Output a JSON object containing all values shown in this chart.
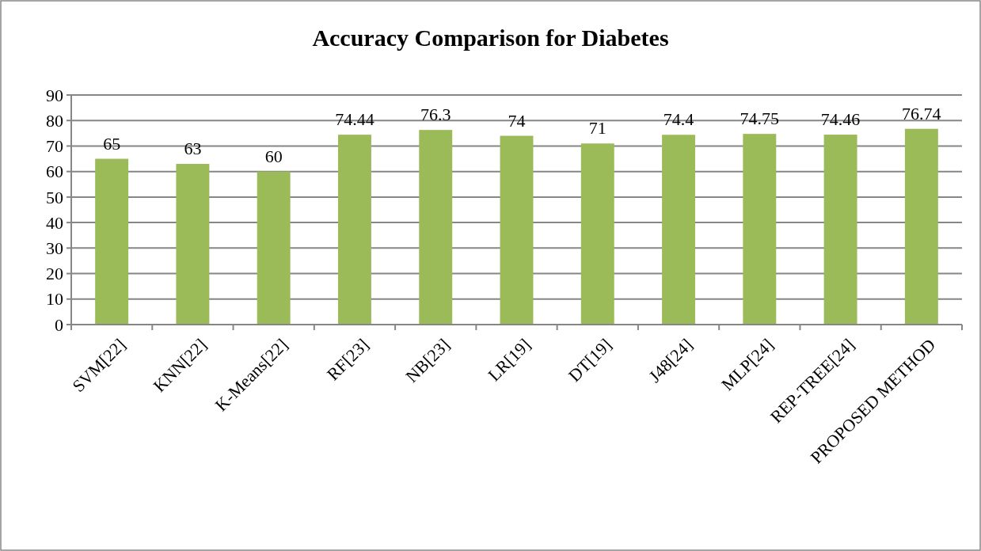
{
  "chart_data": {
    "type": "bar",
    "title": "Accuracy Comparison for Diabetes",
    "categories": [
      "SVM[22]",
      "KNN[22]",
      "K-Means[22]",
      "RF[23]",
      "NB[23]",
      "LR[19]",
      "DT[19]",
      "J48[24]",
      "MLP[24]",
      "REP-TREE[24]",
      "PROPOSED METHOD"
    ],
    "values": [
      65,
      63,
      60,
      74.44,
      76.3,
      74,
      71,
      74.4,
      74.75,
      74.46,
      76.74
    ],
    "color": "#9bbb59",
    "ylim": [
      0,
      90
    ],
    "yticks": [
      0,
      10,
      20,
      30,
      40,
      50,
      60,
      70,
      80,
      90
    ],
    "grid": "y",
    "data_labels": true
  }
}
